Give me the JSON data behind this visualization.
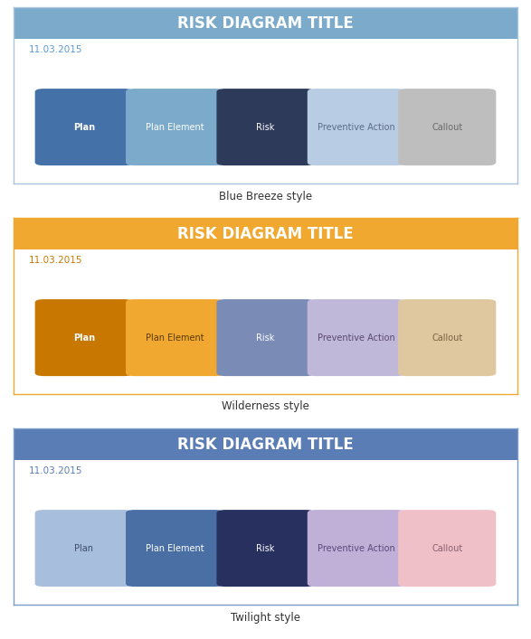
{
  "title": "RISK DIAGRAM TITLE",
  "date": "11.03.2015",
  "fig_width": 5.87,
  "fig_height": 7.07,
  "styles": [
    {
      "name": "Blue Breeze style",
      "header_color": "#7BAACB",
      "header_text_color": "#FFFFFF",
      "date_color": "#5B9BD5",
      "border_color": "#A9C4DC",
      "bg_color": "#FFFFFF",
      "boxes": [
        {
          "label": "Plan",
          "color": "#4472A8",
          "text_color": "#FFFFFF",
          "bold": true
        },
        {
          "label": "Plan Element",
          "color": "#7BAACB",
          "text_color": "#FFFFFF",
          "bold": false
        },
        {
          "label": "Risk",
          "color": "#2E3A59",
          "text_color": "#FFFFFF",
          "bold": false
        },
        {
          "label": "Preventive Action",
          "color": "#B8CCE4",
          "text_color": "#5B6B8A",
          "bold": false
        },
        {
          "label": "Callout",
          "color": "#BEBEBE",
          "text_color": "#6A6A6A",
          "bold": false
        }
      ]
    },
    {
      "name": "Wilderness style",
      "header_color": "#F0A830",
      "header_text_color": "#FFFFFF",
      "date_color": "#C87800",
      "border_color": "#F0A830",
      "bg_color": "#FFFFFF",
      "boxes": [
        {
          "label": "Plan",
          "color": "#C87800",
          "text_color": "#FFFFFF",
          "bold": true
        },
        {
          "label": "Plan Element",
          "color": "#F0A830",
          "text_color": "#5A3A00",
          "bold": false
        },
        {
          "label": "Risk",
          "color": "#7A8CB5",
          "text_color": "#FFFFFF",
          "bold": false
        },
        {
          "label": "Preventive Action",
          "color": "#C0B8D8",
          "text_color": "#5A4870",
          "bold": false
        },
        {
          "label": "Callout",
          "color": "#DFC8A0",
          "text_color": "#7A6040",
          "bold": false
        }
      ]
    },
    {
      "name": "Twilight style",
      "header_color": "#5B7DB5",
      "header_text_color": "#FFFFFF",
      "date_color": "#5B7DB5",
      "border_color": "#7A9CC8",
      "bg_color": "#FFFFFF",
      "boxes": [
        {
          "label": "Plan",
          "color": "#A8BEDD",
          "text_color": "#3A4A6A",
          "bold": false
        },
        {
          "label": "Plan Element",
          "color": "#4A6FA5",
          "text_color": "#FFFFFF",
          "bold": false
        },
        {
          "label": "Risk",
          "color": "#283060",
          "text_color": "#FFFFFF",
          "bold": false
        },
        {
          "label": "Preventive Action",
          "color": "#C0B0D8",
          "text_color": "#5A4878",
          "bold": false
        },
        {
          "label": "Callout",
          "color": "#F0C0C8",
          "text_color": "#886070",
          "bold": false
        }
      ]
    }
  ]
}
